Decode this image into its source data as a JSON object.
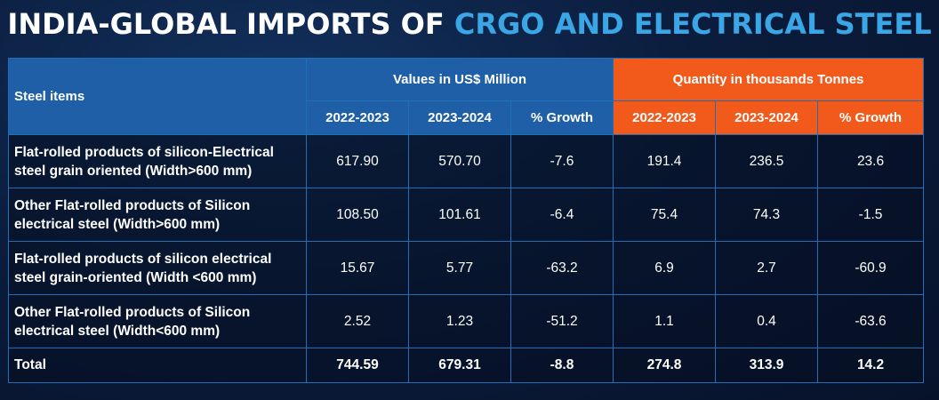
{
  "title": {
    "part1": "INDIA-GLOBAL IMPORTS OF",
    "part2": "CRGO AND ELECTRICAL STEEL"
  },
  "colors": {
    "title_white": "#ffffff",
    "title_accent": "#3aa6e6",
    "values_header": "#1f5fa8",
    "quantity_header": "#f25a1c",
    "background": "#0b1d3d"
  },
  "chart_data": {
    "type": "table",
    "headers": {
      "items": "Steel items",
      "values_group": "Values in US$ Million",
      "quantity_group": "Quantity in thousands Tonnes",
      "sub": [
        "2022-2023",
        "2023-2024",
        "% Growth",
        "2022-2023",
        "2023-2024",
        "% Growth"
      ]
    },
    "rows": [
      {
        "item": "Flat-rolled products of silicon-Electrical steel grain oriented (Width>600 mm)",
        "values": [
          "617.90",
          "570.70",
          "-7.6",
          "191.4",
          "236.5",
          "23.6"
        ]
      },
      {
        "item": "Other Flat-rolled products of Silicon electrical steel (Width>600 mm)",
        "values": [
          "108.50",
          "101.61",
          "-6.4",
          "75.4",
          "74.3",
          "-1.5"
        ]
      },
      {
        "item": "Flat-rolled products of silicon electrical steel grain-oriented (Width <600 mm)",
        "values": [
          "15.67",
          "5.77",
          "-63.2",
          "6.9",
          "2.7",
          "-60.9"
        ]
      },
      {
        "item": "Other Flat-rolled products of Silicon electrical steel (Width<600 mm)",
        "values": [
          "2.52",
          "1.23",
          "-51.2",
          "1.1",
          "0.4",
          "-63.6"
        ]
      }
    ],
    "total": {
      "item": "Total",
      "values": [
        "744.59",
        "679.31",
        "-8.8",
        "274.8",
        "313.9",
        "14.2"
      ]
    }
  }
}
